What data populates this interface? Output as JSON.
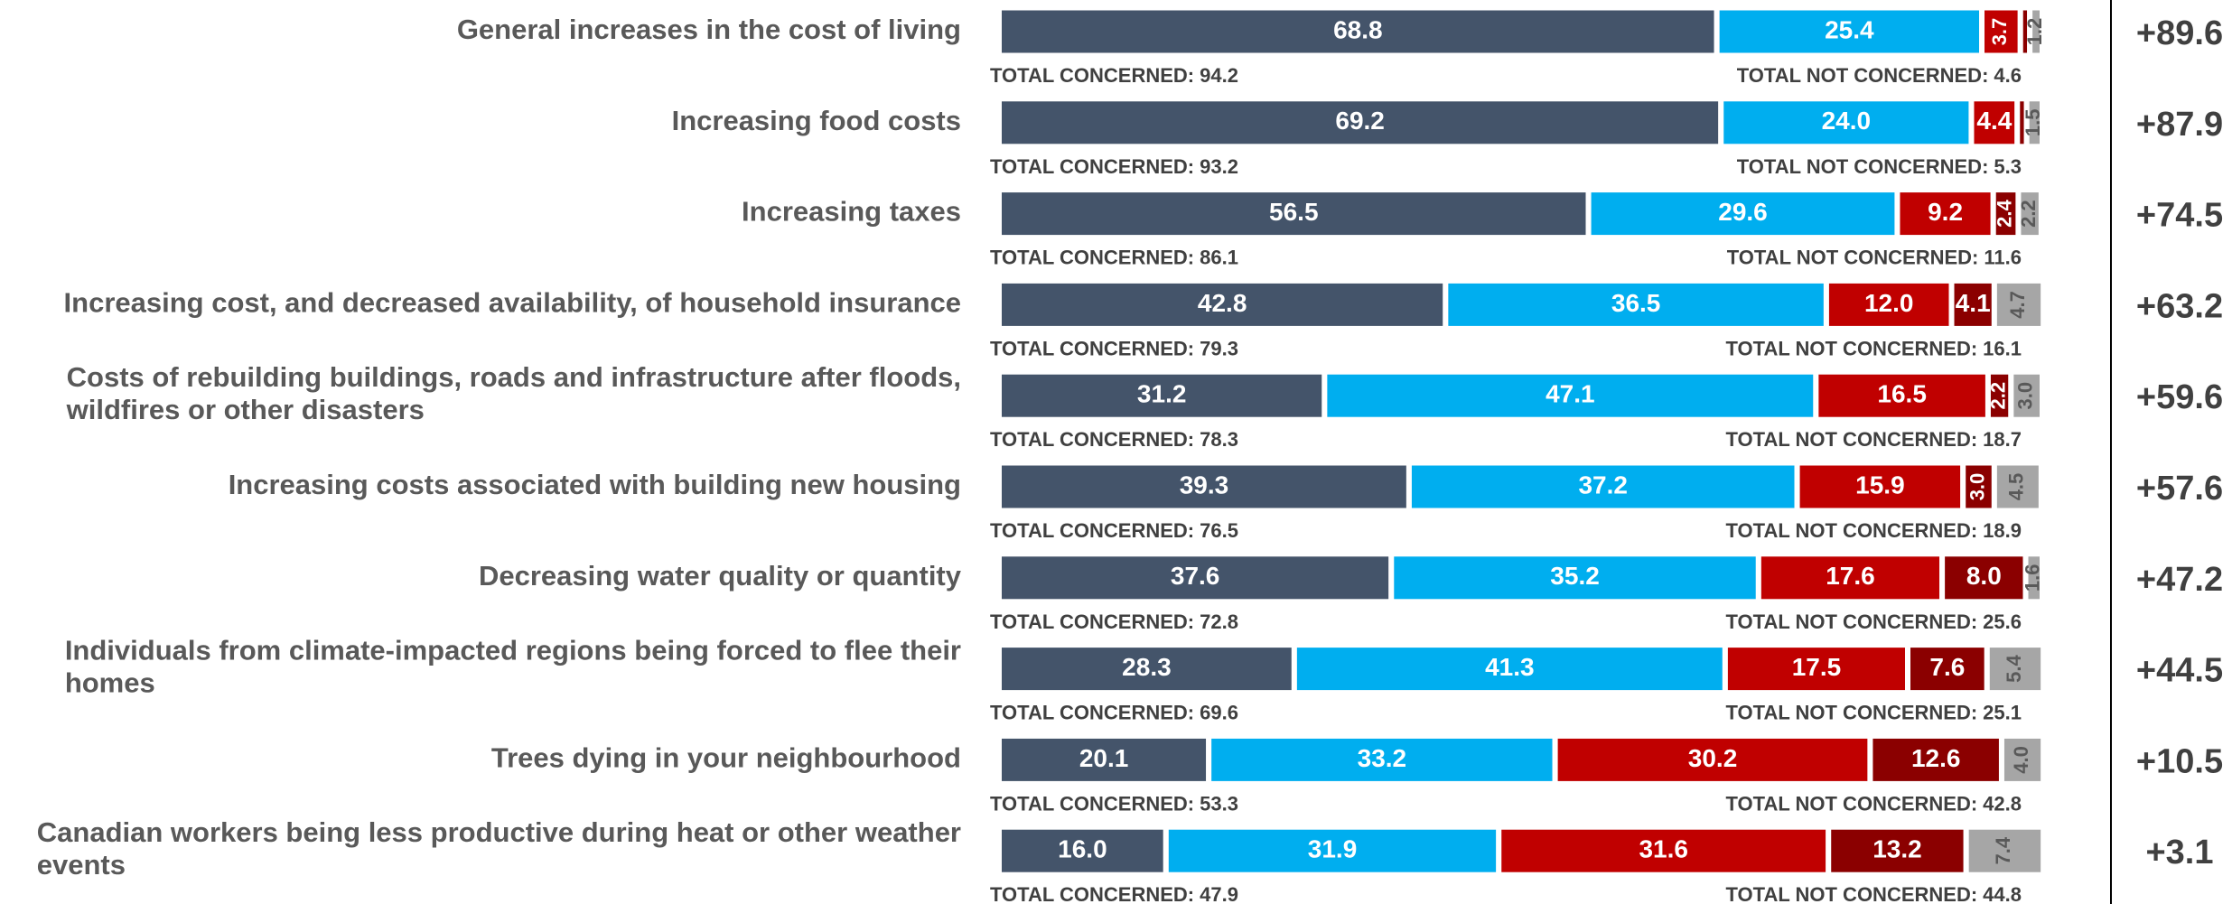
{
  "chart_data": {
    "type": "stacked-bar-horizontal",
    "categories": [
      "General increases in the cost of living",
      "Increasing food costs",
      "Increasing taxes",
      "Increasing cost, and decreased availability, of household insurance",
      "Costs of rebuilding buildings, roads and infrastructure after floods, wildfires or other disasters",
      "Increasing costs associated with building new housing",
      "Decreasing water quality or quantity",
      "Individuals from climate-impacted regions being forced to flee their homes",
      "Trees dying in your neighbourhood",
      "Canadian workers being less productive during heat or other weather events"
    ],
    "xlim": [
      0,
      100
    ],
    "series": [
      {
        "color": "#44546a",
        "values": [
          68.8,
          69.2,
          56.5,
          42.8,
          31.2,
          39.3,
          37.6,
          28.3,
          20.1,
          16.0
        ],
        "value_labels": [
          "68.8",
          "69.2",
          "56.5",
          "42.8",
          "31.2",
          "39.3",
          "37.6",
          "28.3",
          "20.1",
          "16.0"
        ]
      },
      {
        "color": "#00aeef",
        "values": [
          25.4,
          24.0,
          29.6,
          36.5,
          47.1,
          37.2,
          35.2,
          41.3,
          33.2,
          31.9
        ],
        "value_labels": [
          "25.4",
          "24.0",
          "29.6",
          "36.5",
          "47.1",
          "37.2",
          "35.2",
          "41.3",
          "33.2",
          "31.9"
        ]
      },
      {
        "color": "#c00000",
        "values": [
          3.7,
          4.4,
          9.2,
          12.0,
          16.5,
          15.9,
          17.6,
          17.5,
          30.2,
          31.6
        ],
        "value_labels": [
          "3.7",
          "4.4",
          "9.2",
          "12.0",
          "16.5",
          "15.9",
          "17.6",
          "17.5",
          "30.2",
          "31.6"
        ]
      },
      {
        "color": "#8b0000",
        "values": [
          0.9,
          0.9,
          2.4,
          4.1,
          2.2,
          3.0,
          8.0,
          7.6,
          12.6,
          13.2
        ],
        "value_labels": [
          null,
          null,
          "2.4",
          "4.1",
          "2.2",
          "3.0",
          "8.0",
          "7.6",
          "12.6",
          "13.2"
        ]
      },
      {
        "color": "#a6a6a6",
        "values": [
          1.2,
          1.5,
          2.2,
          4.7,
          3.0,
          4.5,
          1.6,
          5.4,
          4.0,
          7.4
        ],
        "value_labels": [
          "1.2",
          "1.5",
          "2.2",
          "4.7",
          "3.0",
          "4.5",
          "1.6",
          "5.4",
          "4.0",
          "7.4"
        ]
      }
    ],
    "total_concerned_label": "TOTAL CONCERNED:",
    "total_concerned": [
      94.2,
      93.2,
      86.1,
      79.3,
      78.3,
      76.5,
      72.8,
      69.6,
      53.3,
      47.9
    ],
    "total_not_concerned_label": "TOTAL NOT CONCERNED:",
    "total_not_concerned": [
      4.6,
      5.3,
      11.6,
      16.1,
      18.7,
      18.9,
      25.6,
      25.1,
      42.8,
      44.8
    ],
    "net": [
      89.6,
      87.9,
      74.5,
      63.2,
      59.6,
      57.6,
      47.2,
      44.5,
      10.5,
      3.1
    ],
    "net_labels": [
      "+89.6",
      "+87.9",
      "+74.5",
      "+63.2",
      "+59.6",
      "+57.6",
      "+47.2",
      "+44.5",
      "+10.5",
      "+3.1"
    ]
  }
}
